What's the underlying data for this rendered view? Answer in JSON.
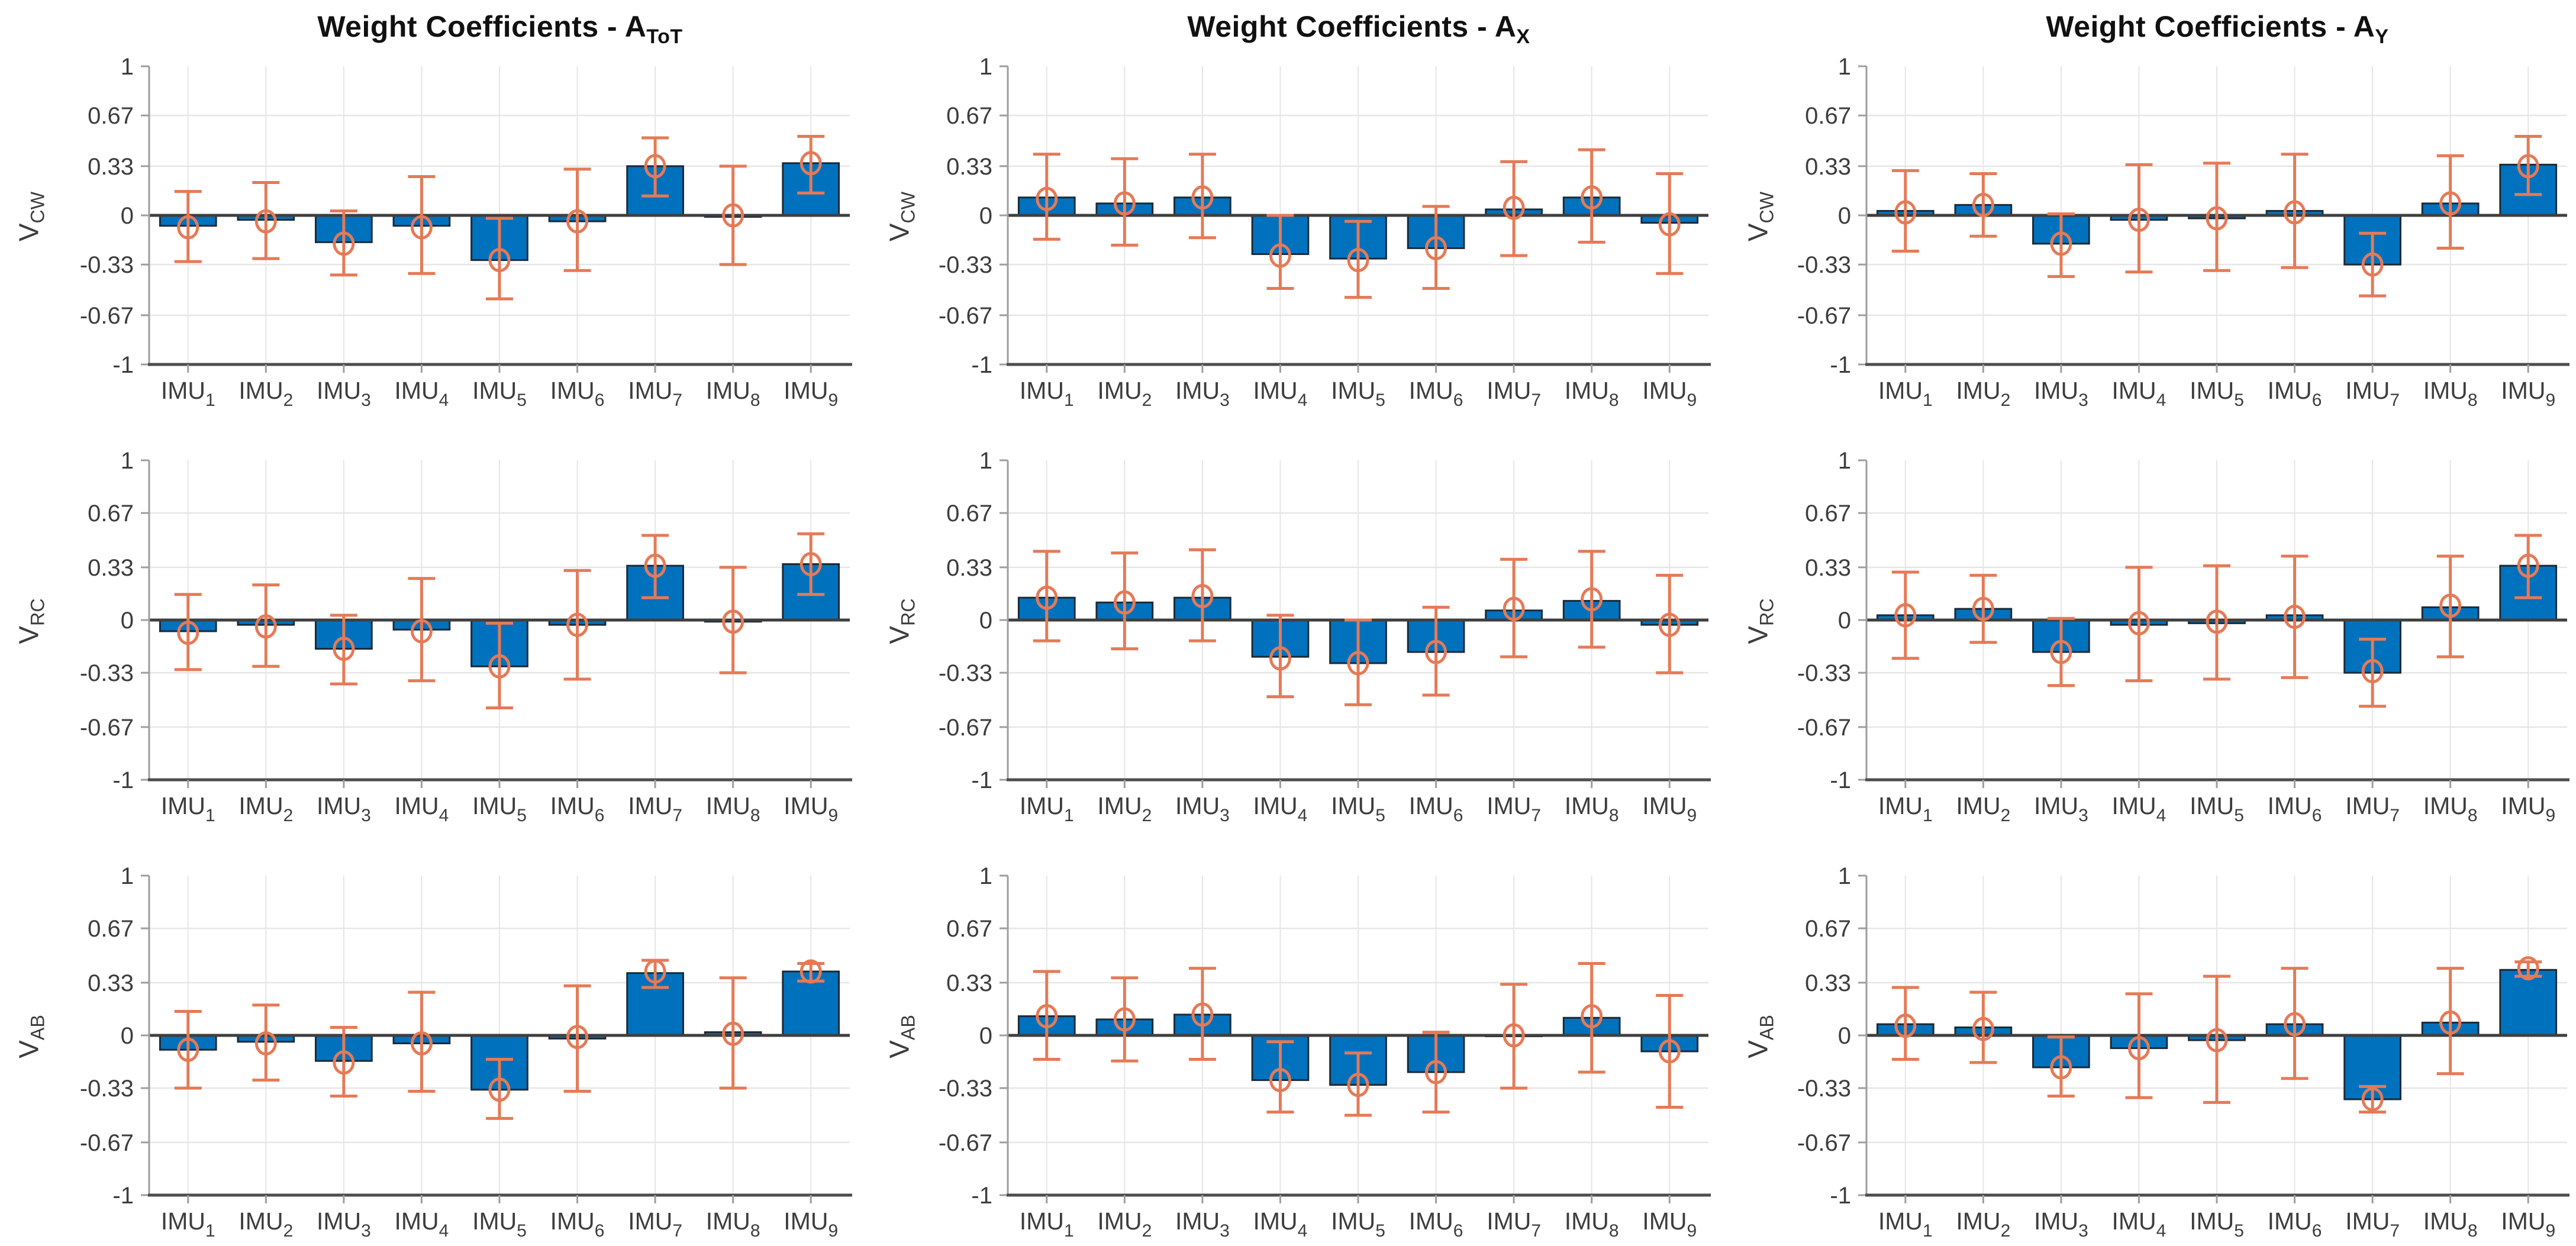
{
  "figure": {
    "background": "#ffffff",
    "colors": {
      "bar_fill": "#0072BD",
      "bar_edge": "#1b2a38",
      "error_bar": "#E57A57",
      "zero_line": "#3f3f3f",
      "axis_line": "#4d4d4d",
      "spine_line": "#9e9e9e",
      "grid_line": "#e6e6e6",
      "tick_text": "#3d3d3d",
      "title_text": "#111111"
    },
    "col_titles": [
      {
        "prefix": "Weight Coefficients - A",
        "sub": "ToT"
      },
      {
        "prefix": "Weight Coefficients - A",
        "sub": "X"
      },
      {
        "prefix": "Weight Coefficients - A",
        "sub": "Y"
      }
    ],
    "row_labels": [
      {
        "prefix": "V",
        "sub": "CW"
      },
      {
        "prefix": "V",
        "sub": "RC"
      },
      {
        "prefix": "V",
        "sub": "AB"
      }
    ],
    "y_ticks": {
      "values": [
        1,
        0.67,
        0.33,
        0,
        -0.33,
        -0.67,
        -1
      ],
      "labels": [
        "1",
        "0.67",
        "0.33",
        "0",
        "-0.33",
        "-0.67",
        "-1"
      ]
    },
    "x_categories": [
      {
        "prefix": "IMU",
        "sub": "1"
      },
      {
        "prefix": "IMU",
        "sub": "2"
      },
      {
        "prefix": "IMU",
        "sub": "3"
      },
      {
        "prefix": "IMU",
        "sub": "4"
      },
      {
        "prefix": "IMU",
        "sub": "5"
      },
      {
        "prefix": "IMU",
        "sub": "6"
      },
      {
        "prefix": "IMU",
        "sub": "7"
      },
      {
        "prefix": "IMU",
        "sub": "8"
      },
      {
        "prefix": "IMU",
        "sub": "9"
      }
    ]
  },
  "chart_data": [
    {
      "type": "bar",
      "column": "A_ToT",
      "row": "V_CW",
      "ylim": [
        -1,
        1
      ],
      "grid": true,
      "values": [
        -0.07,
        -0.03,
        -0.18,
        -0.07,
        -0.3,
        -0.04,
        0.33,
        -0.01,
        0.35
      ],
      "err_center": [
        -0.08,
        -0.04,
        -0.19,
        -0.08,
        -0.3,
        -0.04,
        0.33,
        0.0,
        0.35
      ],
      "err_lo": [
        -0.31,
        -0.29,
        -0.4,
        -0.39,
        -0.56,
        -0.37,
        0.13,
        -0.33,
        0.15
      ],
      "err_hi": [
        0.16,
        0.22,
        0.03,
        0.26,
        -0.02,
        0.31,
        0.52,
        0.33,
        0.53
      ]
    },
    {
      "type": "bar",
      "column": "A_X",
      "row": "V_CW",
      "ylim": [
        -1,
        1
      ],
      "grid": true,
      "values": [
        0.12,
        0.08,
        0.12,
        -0.26,
        -0.29,
        -0.22,
        0.04,
        0.12,
        -0.05
      ],
      "err_center": [
        0.11,
        0.08,
        0.12,
        -0.27,
        -0.3,
        -0.22,
        0.05,
        0.12,
        -0.06
      ],
      "err_lo": [
        -0.16,
        -0.2,
        -0.15,
        -0.49,
        -0.55,
        -0.49,
        -0.27,
        -0.18,
        -0.39
      ],
      "err_hi": [
        0.41,
        0.38,
        0.41,
        0.0,
        -0.04,
        0.06,
        0.36,
        0.44,
        0.28
      ]
    },
    {
      "type": "bar",
      "column": "A_Y",
      "row": "V_CW",
      "ylim": [
        -1,
        1
      ],
      "grid": true,
      "values": [
        0.03,
        0.07,
        -0.19,
        -0.03,
        -0.02,
        0.03,
        -0.33,
        0.08,
        0.34
      ],
      "err_center": [
        0.02,
        0.07,
        -0.19,
        -0.03,
        -0.02,
        0.02,
        -0.33,
        0.08,
        0.33
      ],
      "err_lo": [
        -0.24,
        -0.14,
        -0.41,
        -0.38,
        -0.37,
        -0.35,
        -0.54,
        -0.22,
        0.14
      ],
      "err_hi": [
        0.3,
        0.28,
        0.01,
        0.34,
        0.35,
        0.41,
        -0.12,
        0.4,
        0.53
      ]
    },
    {
      "type": "bar",
      "column": "A_ToT",
      "row": "V_RC",
      "ylim": [
        -1,
        1
      ],
      "grid": true,
      "values": [
        -0.07,
        -0.03,
        -0.18,
        -0.06,
        -0.29,
        -0.03,
        0.34,
        -0.01,
        0.35
      ],
      "err_center": [
        -0.08,
        -0.04,
        -0.18,
        -0.07,
        -0.29,
        -0.03,
        0.34,
        -0.01,
        0.35
      ],
      "err_lo": [
        -0.31,
        -0.29,
        -0.4,
        -0.38,
        -0.55,
        -0.37,
        0.14,
        -0.33,
        0.16
      ],
      "err_hi": [
        0.16,
        0.22,
        0.03,
        0.26,
        -0.02,
        0.31,
        0.53,
        0.33,
        0.54
      ]
    },
    {
      "type": "bar",
      "column": "A_X",
      "row": "V_RC",
      "ylim": [
        -1,
        1
      ],
      "grid": true,
      "values": [
        0.14,
        0.11,
        0.14,
        -0.23,
        -0.27,
        -0.2,
        0.06,
        0.12,
        -0.03
      ],
      "err_center": [
        0.14,
        0.11,
        0.15,
        -0.24,
        -0.27,
        -0.2,
        0.07,
        0.13,
        -0.03
      ],
      "err_lo": [
        -0.13,
        -0.18,
        -0.13,
        -0.48,
        -0.53,
        -0.47,
        -0.23,
        -0.17,
        -0.33
      ],
      "err_hi": [
        0.43,
        0.42,
        0.44,
        0.03,
        0.0,
        0.08,
        0.38,
        0.43,
        0.28
      ]
    },
    {
      "type": "bar",
      "column": "A_Y",
      "row": "V_RC",
      "ylim": [
        -1,
        1
      ],
      "grid": true,
      "values": [
        0.03,
        0.07,
        -0.2,
        -0.03,
        -0.02,
        0.03,
        -0.33,
        0.08,
        0.34
      ],
      "err_center": [
        0.03,
        0.07,
        -0.2,
        -0.02,
        -0.01,
        0.02,
        -0.32,
        0.09,
        0.34
      ],
      "err_lo": [
        -0.24,
        -0.14,
        -0.41,
        -0.38,
        -0.37,
        -0.36,
        -0.54,
        -0.23,
        0.14
      ],
      "err_hi": [
        0.3,
        0.28,
        0.01,
        0.33,
        0.34,
        0.4,
        -0.12,
        0.4,
        0.53
      ]
    },
    {
      "type": "bar",
      "column": "A_ToT",
      "row": "V_AB",
      "ylim": [
        -1,
        1
      ],
      "grid": true,
      "values": [
        -0.09,
        -0.04,
        -0.16,
        -0.05,
        -0.34,
        -0.02,
        0.39,
        0.02,
        0.4
      ],
      "err_center": [
        -0.09,
        -0.05,
        -0.17,
        -0.05,
        -0.34,
        -0.01,
        0.4,
        0.01,
        0.4
      ],
      "err_lo": [
        -0.33,
        -0.28,
        -0.38,
        -0.35,
        -0.52,
        -0.35,
        0.3,
        -0.33,
        0.34
      ],
      "err_hi": [
        0.15,
        0.19,
        0.05,
        0.27,
        -0.15,
        0.31,
        0.47,
        0.36,
        0.45
      ]
    },
    {
      "type": "bar",
      "column": "A_X",
      "row": "V_AB",
      "ylim": [
        -1,
        1
      ],
      "grid": true,
      "values": [
        0.12,
        0.1,
        0.13,
        -0.28,
        -0.31,
        -0.23,
        0.0,
        0.11,
        -0.1
      ],
      "err_center": [
        0.12,
        0.1,
        0.13,
        -0.28,
        -0.31,
        -0.23,
        0.0,
        0.12,
        -0.1
      ],
      "err_lo": [
        -0.15,
        -0.16,
        -0.15,
        -0.48,
        -0.5,
        -0.48,
        -0.33,
        -0.23,
        -0.45
      ],
      "err_hi": [
        0.4,
        0.36,
        0.42,
        -0.04,
        -0.11,
        0.02,
        0.32,
        0.45,
        0.25
      ]
    },
    {
      "type": "bar",
      "column": "A_Y",
      "row": "V_AB",
      "ylim": [
        -1,
        1
      ],
      "grid": true,
      "values": [
        0.07,
        0.05,
        -0.2,
        -0.08,
        -0.03,
        0.07,
        -0.4,
        0.08,
        0.41
      ],
      "err_center": [
        0.06,
        0.04,
        -0.2,
        -0.08,
        -0.03,
        0.07,
        -0.4,
        0.08,
        0.42
      ],
      "err_lo": [
        -0.15,
        -0.17,
        -0.38,
        -0.39,
        -0.42,
        -0.27,
        -0.48,
        -0.24,
        0.37
      ],
      "err_hi": [
        0.3,
        0.27,
        -0.01,
        0.26,
        0.37,
        0.42,
        -0.32,
        0.42,
        0.46
      ]
    }
  ]
}
